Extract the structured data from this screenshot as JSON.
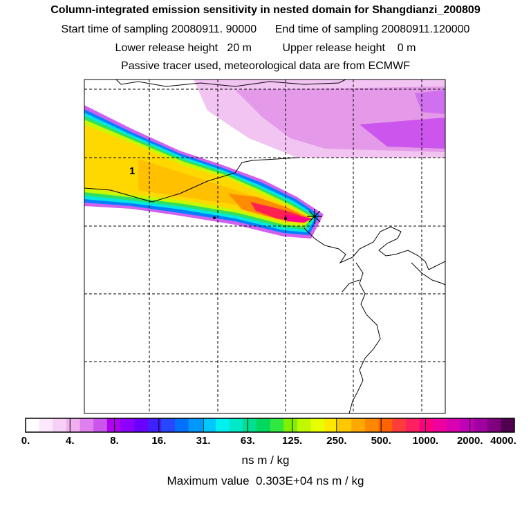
{
  "title": "Column-integrated emission sensitivity in nested domain for Shangdianzi_200809",
  "line1": "Start time of sampling 20080911. 90000      End time of sampling 20080911.120000",
  "line2": "Lower release height   20 m          Upper release height    0 m",
  "line3": "Passive tracer used, meteorological data are from ECMWF",
  "map_label": "1",
  "legend": {
    "ticks": [
      "0.",
      "4.",
      "8.",
      "16.",
      "31.",
      "63.",
      "125.",
      "250.",
      "500.",
      "1000.",
      "2000.",
      "4000."
    ],
    "colors": [
      "#ffffff",
      "#fbe8fb",
      "#f6d0f6",
      "#f0b0f0",
      "#e080ee",
      "#cc55ee",
      "#b000f0",
      "#8c00ff",
      "#6a00ff",
      "#4020ff",
      "#2848ff",
      "#0070ff",
      "#0098ff",
      "#00c8ff",
      "#00f0f0",
      "#00e8c8",
      "#00e090",
      "#00d860",
      "#30e840",
      "#80f000",
      "#c0f800",
      "#e8ff00",
      "#ffe800",
      "#ffc800",
      "#ffa800",
      "#ff8800",
      "#ff6400",
      "#ff3c3c",
      "#ff2060",
      "#ff0080",
      "#f000a0",
      "#d800b0",
      "#c000b8",
      "#a000a0",
      "#800080",
      "#500050"
    ],
    "unit": "ns m / kg",
    "max_text": "Maximum value  0.303E+04 ns m / kg"
  },
  "release_site": "star-marker"
}
